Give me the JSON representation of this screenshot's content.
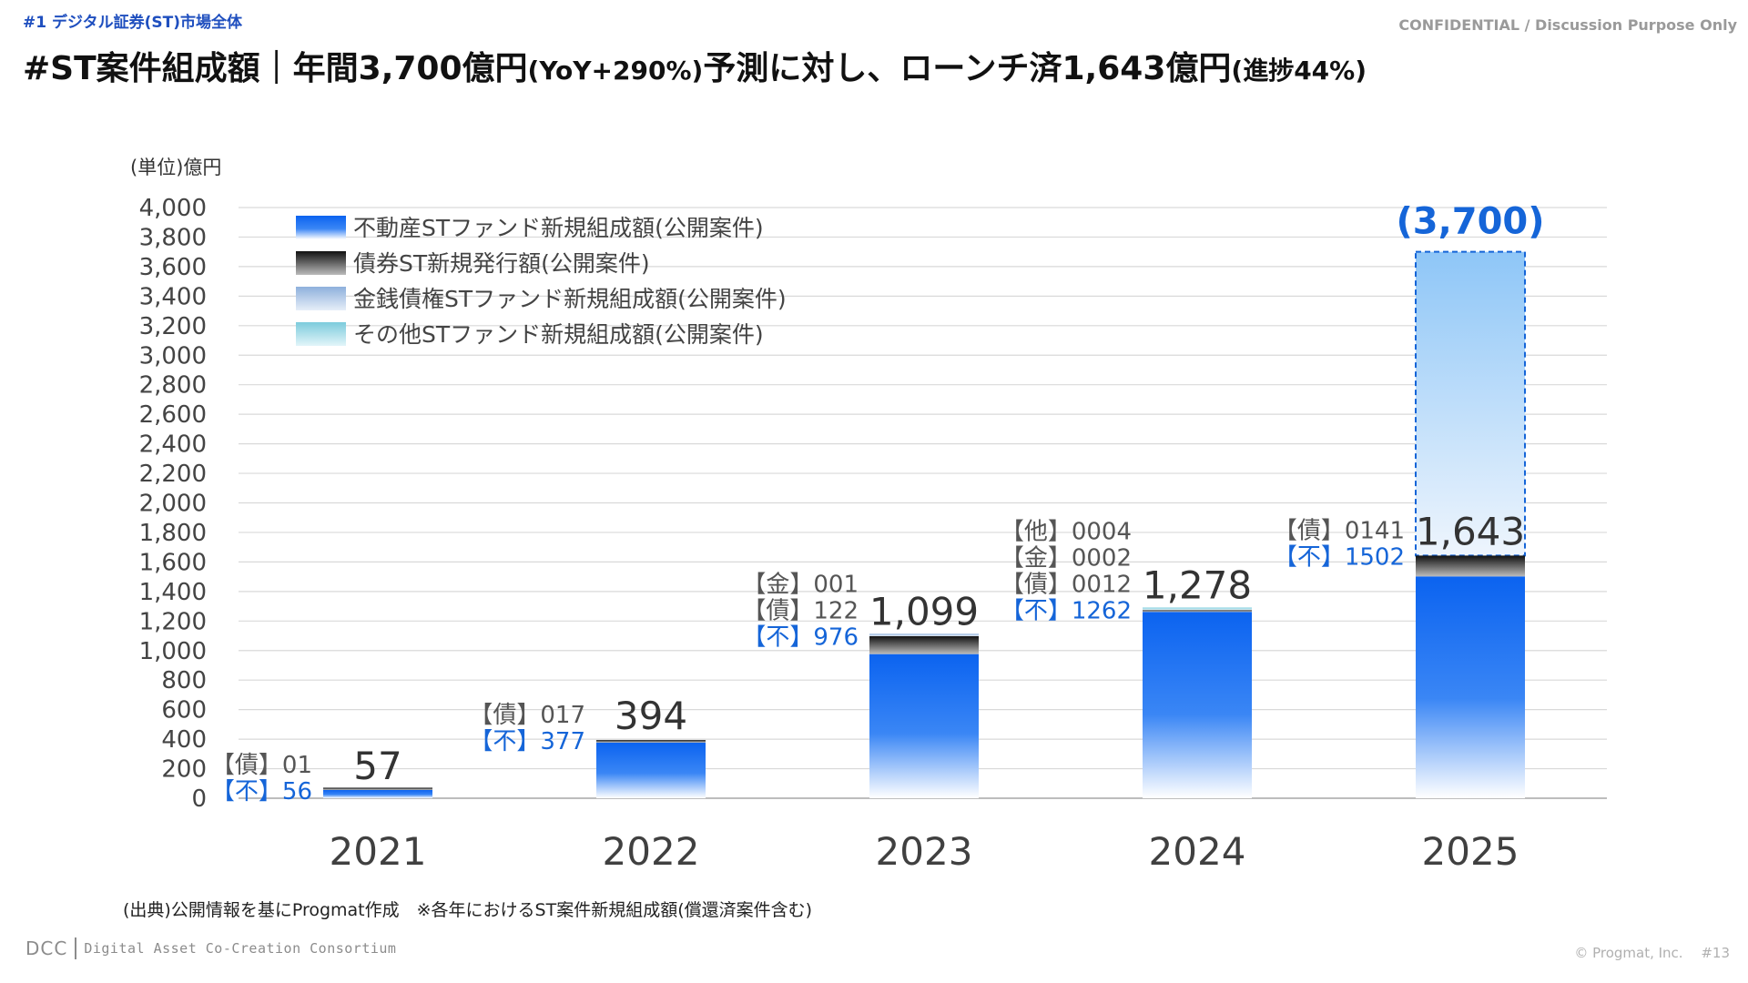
{
  "header": {
    "section_tag": "#1 デジタル証券(ST)市場全体",
    "confidential": "CONFIDENTIAL / Discussion Purpose Only",
    "title_part1": "#ST案件組成額｜年間3,700億円",
    "title_part2": "(YoY+290%)",
    "title_part3": "予測に対し、ローンチ済1,643億円",
    "title_part4": "(進捗44%)"
  },
  "colors": {
    "real_estate": "#0b63f0",
    "bond": "#333333",
    "monetary": "#9db8dc",
    "other": "#8fd3e0",
    "forecast": "#7fbff5",
    "forecast_label": "#1565d8",
    "label_gray": "#555555",
    "label_blue": "#1565d8"
  },
  "chart_data": {
    "type": "bar",
    "stacked": true,
    "unit_label": "(単位)億円",
    "ylim": [
      0,
      4000
    ],
    "yticks": [
      "0",
      "200",
      "400",
      "600",
      "800",
      "1,000",
      "1,200",
      "1,400",
      "1,600",
      "1,800",
      "2,000",
      "2,200",
      "2,400",
      "2,600",
      "2,800",
      "3,000",
      "3,200",
      "3,400",
      "3,600",
      "3,800",
      "4,000"
    ],
    "ytick_values": [
      0,
      200,
      400,
      600,
      800,
      1000,
      1200,
      1400,
      1600,
      1800,
      2000,
      2200,
      2400,
      2600,
      2800,
      3000,
      3200,
      3400,
      3600,
      3800,
      4000
    ],
    "grid": true,
    "legend_position": "top-left",
    "categories": [
      "2021",
      "2022",
      "2023",
      "2024",
      "2025"
    ],
    "series": [
      {
        "name": "不動産STファンド新規組成額(公開案件)",
        "values": [
          56,
          377,
          976,
          1262,
          1502
        ]
      },
      {
        "name": "債券ST新規発行額(公開案件)",
        "values": [
          1,
          17,
          122,
          12,
          141
        ]
      },
      {
        "name": "金銭債権STファンド新規組成額(公開案件)",
        "values": [
          0,
          0,
          1,
          2,
          0
        ]
      },
      {
        "name": "その他STファンド新規組成額(公開案件)",
        "values": [
          0,
          0,
          0,
          4,
          0
        ]
      }
    ],
    "totals": [
      "57",
      "394",
      "1,099",
      "1,278",
      "1,643"
    ],
    "total_values": [
      57,
      394,
      1099,
      1278,
      1643
    ],
    "forecast": {
      "category": "2025",
      "value": 3700,
      "label": "(3,700)"
    },
    "bar_labels": [
      {
        "lines": [
          {
            "text": "【債】01",
            "color": "gray"
          },
          {
            "text": "【不】56",
            "color": "blue"
          }
        ]
      },
      {
        "lines": [
          {
            "text": "【債】017",
            "color": "gray"
          },
          {
            "text": "【不】377",
            "color": "blue"
          }
        ]
      },
      {
        "lines": [
          {
            "text": "【金】001",
            "color": "gray"
          },
          {
            "text": "【債】122",
            "color": "gray"
          },
          {
            "text": "【不】976",
            "color": "blue"
          }
        ]
      },
      {
        "lines": [
          {
            "text": "【他】0004",
            "color": "gray"
          },
          {
            "text": "【金】0002",
            "color": "gray"
          },
          {
            "text": "【債】0012",
            "color": "gray"
          },
          {
            "text": "【不】1262",
            "color": "blue"
          }
        ]
      },
      {
        "lines": [
          {
            "text": "【債】0141",
            "color": "gray"
          },
          {
            "text": "【不】1502",
            "color": "blue"
          }
        ]
      }
    ]
  },
  "footer": {
    "source": "(出典)公開情報を基にProgmat作成　※各年におけるST案件新規組成額(償還済案件含む)",
    "logo_dcc": "DCC",
    "logo_consortium": "Digital Asset Co-Creation Consortium",
    "copyright": "© Progmat, Inc.　 #13"
  }
}
